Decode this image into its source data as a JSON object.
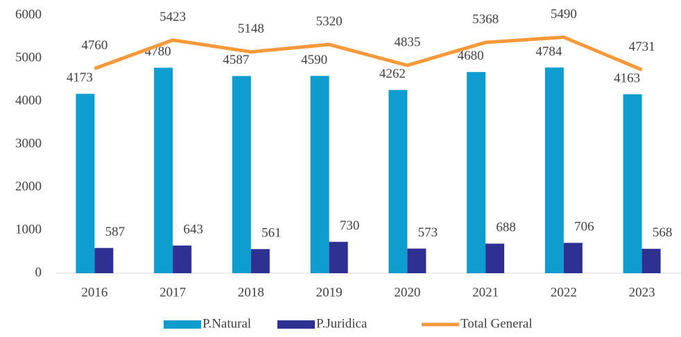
{
  "chart_data": {
    "type": "bar_line",
    "categories": [
      "2016",
      "2017",
      "2018",
      "2019",
      "2020",
      "2021",
      "2022",
      "2023"
    ],
    "series": [
      {
        "name": "P.Natural",
        "color": "#0f9dcf",
        "type": "bar",
        "values": [
          4173,
          4780,
          4587,
          4590,
          4262,
          4680,
          4784,
          4163
        ]
      },
      {
        "name": "P.Juridica",
        "color": "#2e3192",
        "type": "bar",
        "values": [
          587,
          643,
          561,
          730,
          573,
          688,
          706,
          568
        ]
      },
      {
        "name": "Total General",
        "color": "#f7993b",
        "type": "line",
        "values": [
          4760,
          5423,
          5148,
          5320,
          4835,
          5368,
          5490,
          4731
        ]
      }
    ],
    "ylim": [
      0,
      6000
    ],
    "yticks": [
      0,
      1000,
      2000,
      3000,
      4000,
      5000,
      6000
    ],
    "grid": false,
    "legend": "bottom"
  }
}
